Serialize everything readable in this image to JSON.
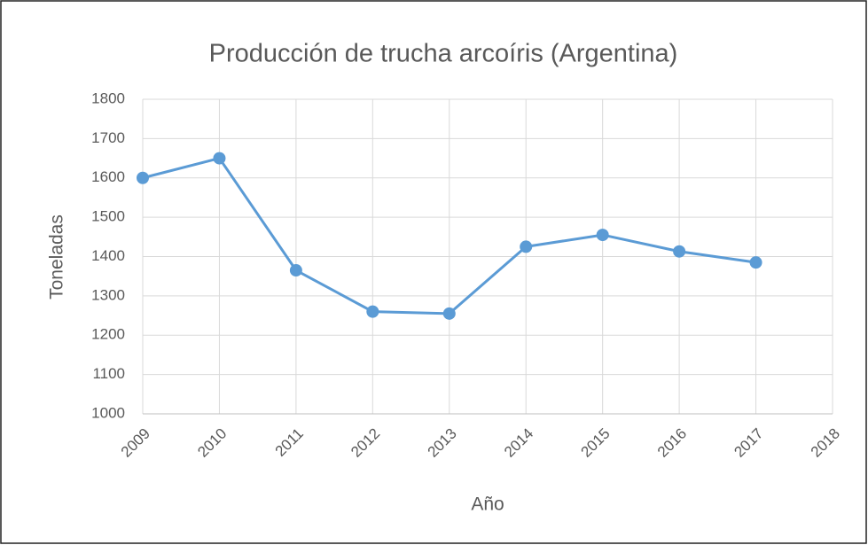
{
  "chart_data": {
    "type": "line",
    "title": "Producción de trucha arcoíris (Argentina)",
    "xlabel": "Año",
    "ylabel": "Toneladas",
    "x": [
      2009,
      2010,
      2011,
      2012,
      2013,
      2014,
      2015,
      2016,
      2017
    ],
    "series": [
      {
        "name": "Toneladas",
        "color": "#5b9bd5",
        "values": [
          1600,
          1650,
          1365,
          1260,
          1255,
          1425,
          1455,
          1413,
          1385
        ]
      }
    ],
    "xlim": [
      2009,
      2018
    ],
    "xticks": [
      2009,
      2010,
      2011,
      2012,
      2013,
      2014,
      2015,
      2016,
      2017,
      2018
    ],
    "ylim": [
      1000,
      1800
    ],
    "yticks": [
      1000,
      1100,
      1200,
      1300,
      1400,
      1500,
      1600,
      1700,
      1800
    ],
    "grid": true,
    "legend": false
  }
}
